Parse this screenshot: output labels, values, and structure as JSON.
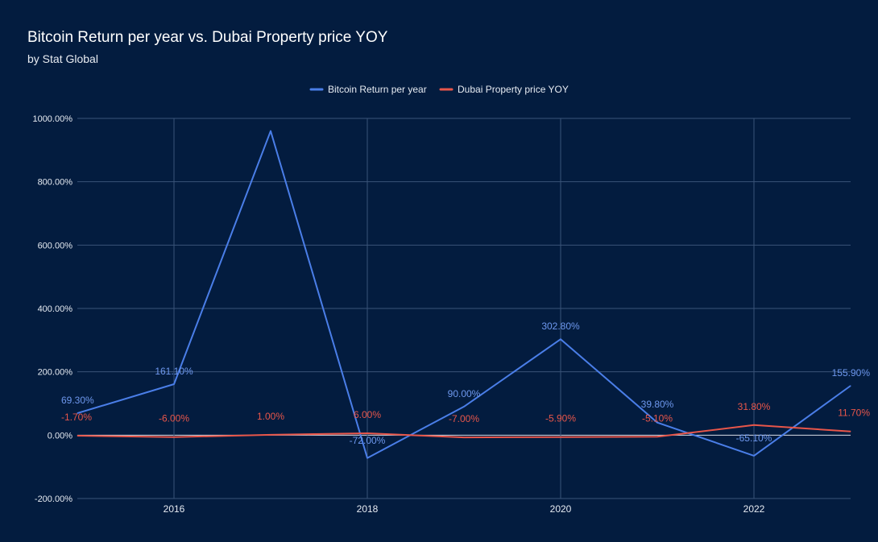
{
  "chart_data": {
    "type": "line",
    "title": "Bitcoin Return per year vs. Dubai Property price YOY",
    "subtitle": "by Stat Global",
    "xlabel": "",
    "ylabel": "",
    "x": [
      2015,
      2016,
      2017,
      2018,
      2019,
      2020,
      2021,
      2022,
      2023
    ],
    "xlim": [
      2015,
      2023
    ],
    "x_ticks": [
      2016,
      2018,
      2020,
      2022
    ],
    "ylim": [
      -200,
      1000
    ],
    "y_ticks": [
      -200,
      0,
      200,
      400,
      600,
      800,
      1000
    ],
    "y_tick_labels": [
      "-200.00%",
      "0.00%",
      "200.00%",
      "400.00%",
      "600.00%",
      "800.00%",
      "1000.00%"
    ],
    "grid": true,
    "legend_position": "top-center",
    "background": "#031c3f",
    "gridline_color": "#3a5378",
    "series": [
      {
        "name": "Bitcoin Return per year",
        "color": "#4a7ee8",
        "label_color": "#6e98ee",
        "values": [
          69.3,
          161.1,
          960,
          -72.0,
          90.0,
          302.8,
          39.8,
          -65.1,
          155.9
        ],
        "data_labels": [
          "69.30%",
          "161.10%",
          null,
          "-72.00%",
          "90.00%",
          "302.80%",
          "39.80%",
          "-65.10%",
          "155.90%"
        ]
      },
      {
        "name": "Dubai Property price YOY",
        "color": "#e8564a",
        "label_color": "#e8564a",
        "values": [
          -1.7,
          -6.0,
          1.0,
          6.0,
          -7.0,
          -5.9,
          -5.1,
          31.8,
          11.7
        ],
        "data_labels": [
          "-1.70%",
          "-6.00%",
          "1.00%",
          "6.00%",
          "-7.00%",
          "-5.90%",
          "-5.10%",
          "31.80%",
          "11.70%"
        ]
      }
    ]
  }
}
